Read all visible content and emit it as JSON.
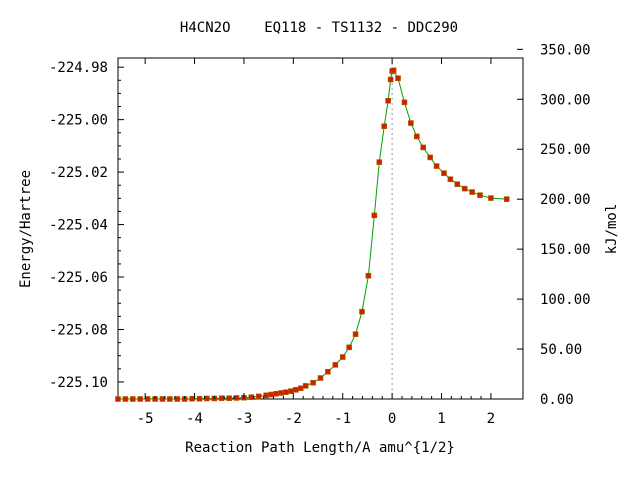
{
  "chart_data": {
    "type": "line",
    "title": "H4CN2O    EQ118 - TS1132 - DDC290",
    "xlabel": "Reaction Path Length/A amu^{1/2}",
    "ylabel": "Energy/Hartree",
    "y2label": "kJ/mol",
    "xlim": [
      -5.55,
      2.65
    ],
    "ylim": [
      -225.1065,
      -224.9765
    ],
    "x_ticks": [
      -5,
      -4,
      -3,
      -2,
      -1,
      0,
      1,
      2
    ],
    "x_tick_labels": [
      "-5",
      "-4",
      "-3",
      "-2",
      "-1",
      "0",
      "1",
      "2"
    ],
    "y_ticks": [
      -225.1,
      -225.08,
      -225.06,
      -225.04,
      -225.02,
      -225.0,
      -224.98
    ],
    "y_tick_labels": [
      "-225.10",
      "-225.08",
      "-225.06",
      "-225.04",
      "-225.02",
      "-225.00",
      "-224.98"
    ],
    "y2_ticks": [
      0,
      50,
      100,
      150,
      200,
      250,
      300,
      350
    ],
    "y2_tick_labels": [
      "0.00",
      "50.00",
      "100.00",
      "150.00",
      "200.00",
      "250.00",
      "300.00",
      "350.00"
    ],
    "y2_reference_energy": -225.1065,
    "hartree_to_kjmol": 2625.5,
    "ts_marker_x": 0,
    "grid": false,
    "colors": {
      "line": "#00a000",
      "marker": "#cc2200",
      "marker_edge": "#aa6600",
      "vline": "#999999"
    },
    "series": [
      {
        "x": [
          -5.55,
          -5.4,
          -5.25,
          -5.1,
          -4.95,
          -4.8,
          -4.65,
          -4.5,
          -4.35,
          -4.2,
          -4.05,
          -3.9,
          -3.75,
          -3.6,
          -3.45,
          -3.3,
          -3.15,
          -3.0,
          -2.85,
          -2.7,
          -2.55,
          -2.45,
          -2.35,
          -2.25,
          -2.15,
          -2.05,
          -1.95,
          -1.85,
          -1.75,
          -1.6,
          -1.45,
          -1.3,
          -1.15,
          -1.0,
          -0.87,
          -0.74,
          -0.61,
          -0.48,
          -0.36,
          -0.26,
          -0.16,
          -0.08,
          -0.03,
          0.0,
          0.03,
          0.12,
          0.25,
          0.38,
          0.5,
          0.63,
          0.77,
          0.9,
          1.05,
          1.18,
          1.32,
          1.47,
          1.62,
          1.78,
          2.0,
          2.32
        ],
        "y": [
          -225.1065,
          -225.1065,
          -225.1065,
          -225.1065,
          -225.1065,
          -225.1065,
          -225.1065,
          -225.1065,
          -225.1065,
          -225.1065,
          -225.1064,
          -225.1064,
          -225.1063,
          -225.1063,
          -225.1062,
          -225.1062,
          -225.1061,
          -225.106,
          -225.1058,
          -225.1055,
          -225.1051,
          -225.1048,
          -225.1045,
          -225.1042,
          -225.1039,
          -225.1035,
          -225.103,
          -225.1024,
          -225.1015,
          -225.1003,
          -225.0985,
          -225.0961,
          -225.0935,
          -225.0905,
          -225.0868,
          -225.0818,
          -225.0732,
          -225.0595,
          -225.0365,
          -225.0162,
          -225.0025,
          -224.9928,
          -224.9847,
          -224.9815,
          -224.9812,
          -224.9842,
          -224.9934,
          -225.0013,
          -225.0064,
          -225.0106,
          -225.0144,
          -225.0177,
          -225.0204,
          -225.0227,
          -225.0246,
          -225.0263,
          -225.0276,
          -225.0288,
          -225.0299,
          -225.0303
        ]
      }
    ]
  }
}
